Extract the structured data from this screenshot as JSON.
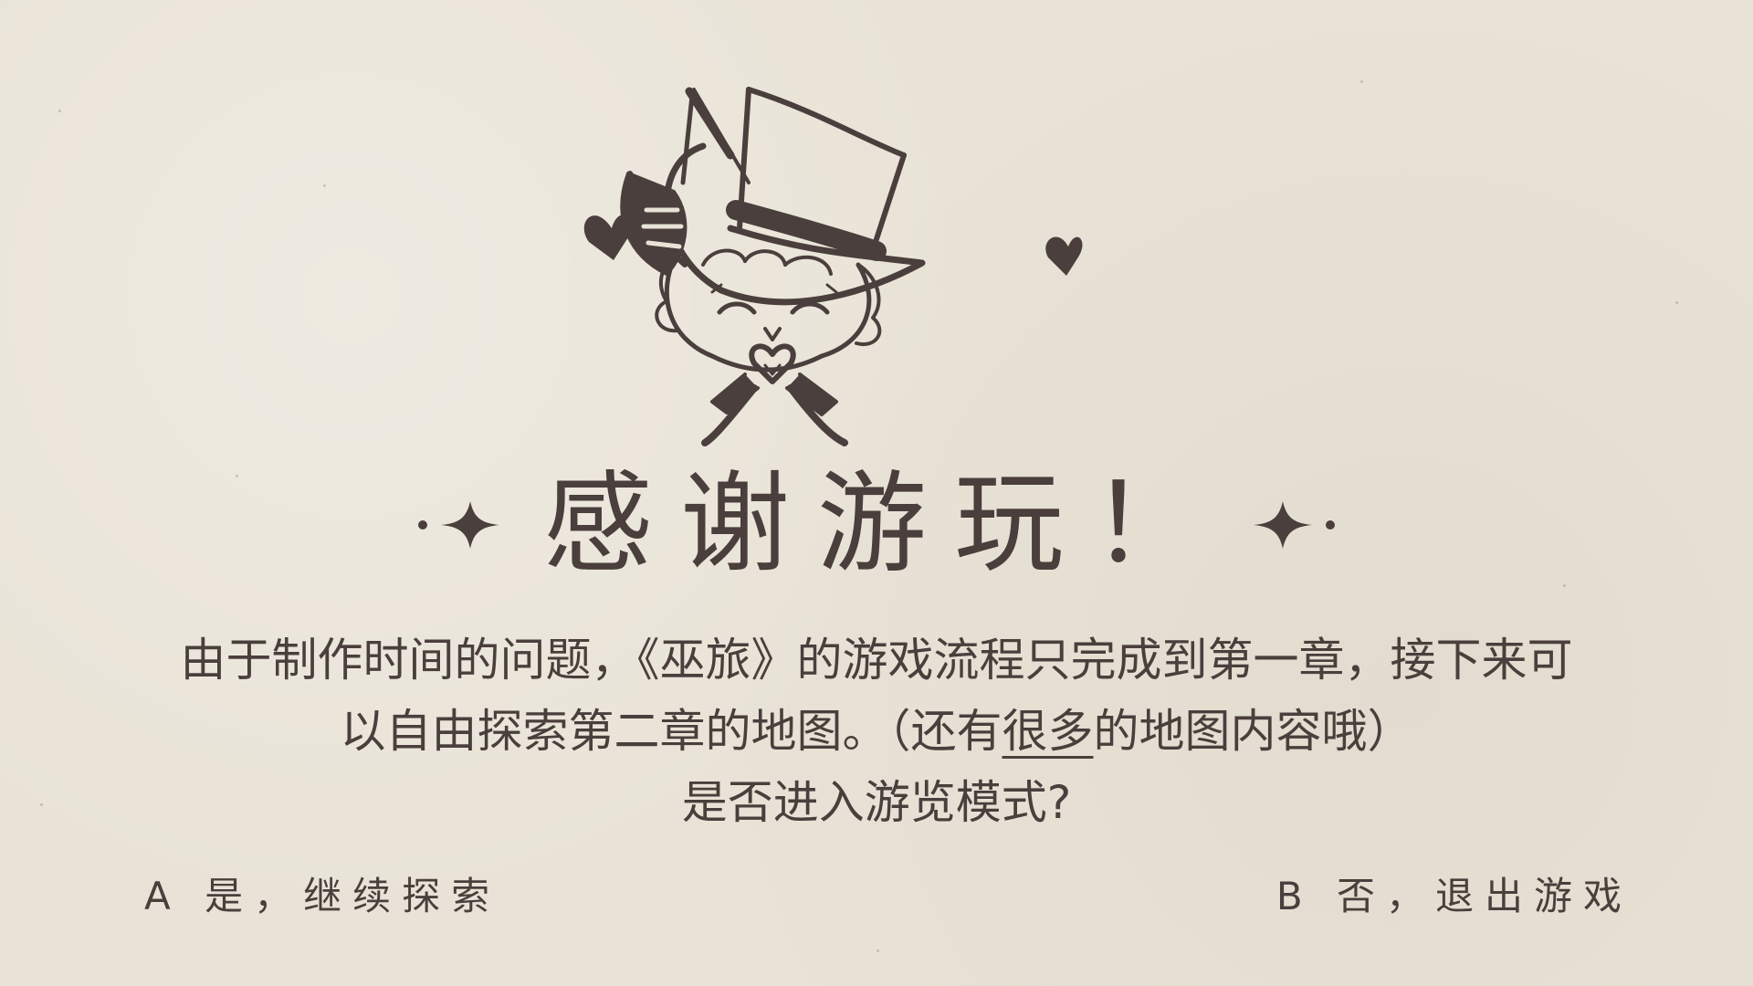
{
  "dialog": {
    "title": "感谢游玩！",
    "line1": "由于制作时间的问题，《巫旅》的游戏流程只完成到第一章，接下来可",
    "line2_before": "以自由探索第二章的地图。（还有",
    "line2_emphasis": "很多",
    "line2_after": "的地图内容哦）",
    "question": "是否进入游览模式?"
  },
  "options": {
    "a_label": "A 是，继续探索",
    "b_label": "B 否，退出游戏"
  },
  "icons": {
    "character": "witch-girl-top-hat-icon",
    "hearts": "heart-icon",
    "ornaments": "sparkle-ornament-icon"
  },
  "colors": {
    "background": "#e9e3d7",
    "ink": "#4a3f3c"
  }
}
